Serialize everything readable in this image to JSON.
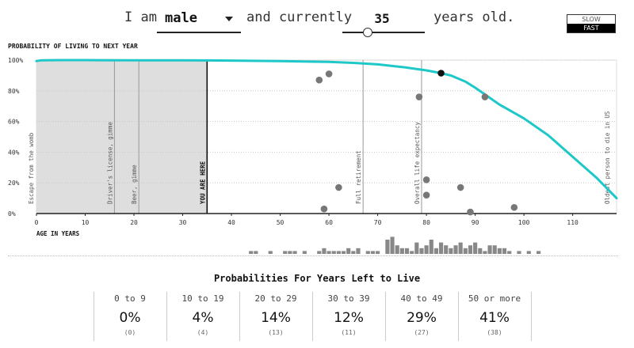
{
  "header": {
    "prefix": "I am",
    "sex_value": "male",
    "middle": "and currently",
    "age_value": "35",
    "suffix": "years old.",
    "speed_options": [
      "SLOW",
      "FAST"
    ],
    "speed_selected": "FAST",
    "age_slider_fraction": 0.3
  },
  "chart_data": {
    "type": "line",
    "title": "PROBABILITY OF LIVING TO NEXT YEAR",
    "xlabel": "AGE IN YEARS",
    "ylabel": "",
    "xlim": [
      0,
      119
    ],
    "ylim": [
      0,
      100
    ],
    "x_ticks": [
      "0",
      "10",
      "20",
      "30",
      "40",
      "50",
      "60",
      "70",
      "80",
      "90",
      "100",
      "110"
    ],
    "y_ticks": [
      "0%",
      "20%",
      "40%",
      "60%",
      "80%",
      "100%"
    ],
    "grid": "horizontal dotted",
    "line_color": "#1ec8c8",
    "series": [
      {
        "x": [
          0,
          1,
          5,
          10,
          20,
          30,
          35,
          40,
          50,
          60,
          65,
          70,
          75,
          80,
          83,
          85,
          88,
          90,
          95,
          100,
          105,
          110,
          115,
          119
        ],
        "y": [
          99.4,
          99.9,
          99.98,
          99.98,
          99.9,
          99.85,
          99.8,
          99.7,
          99.4,
          98.8,
          98.2,
          97.2,
          95.5,
          93.3,
          91.5,
          90,
          86,
          82,
          71,
          62,
          51,
          37,
          23,
          10
        ]
      }
    ],
    "shaded_region": {
      "from": 0,
      "to": 35
    },
    "current_marker": {
      "x": 83,
      "y": 91.5
    },
    "markers": [
      {
        "x": 0,
        "label": "Escape from the womb"
      },
      {
        "x": 16,
        "label": "Driver's license, gimme"
      },
      {
        "x": 21,
        "label": "Beer, gimme"
      },
      {
        "x": 35,
        "label": "YOU ARE HERE"
      },
      {
        "x": 67,
        "label": "Full retirement"
      },
      {
        "x": 79,
        "label": "Overall life expectancy"
      },
      {
        "x": 119,
        "label": "Oldest person to die in US"
      }
    ],
    "death_points": [
      {
        "x": 58,
        "y": 87
      },
      {
        "x": 60,
        "y": 91
      },
      {
        "x": 59,
        "y": 3
      },
      {
        "x": 62,
        "y": 17
      },
      {
        "x": 78.5,
        "y": 76
      },
      {
        "x": 80,
        "y": 22
      },
      {
        "x": 80,
        "y": 12
      },
      {
        "x": 87,
        "y": 17
      },
      {
        "x": 89,
        "y": 1
      },
      {
        "x": 92,
        "y": 76
      },
      {
        "x": 98,
        "y": 4
      }
    ],
    "histogram": {
      "bins": [
        44,
        45,
        48,
        51,
        52,
        53,
        55,
        58,
        59,
        60,
        61,
        62,
        63,
        64,
        65,
        66,
        68,
        69,
        70,
        72,
        73,
        74,
        75,
        76,
        77,
        78,
        79,
        80,
        81,
        82,
        83,
        84,
        85,
        86,
        87,
        88,
        89,
        90,
        91,
        92,
        93,
        94,
        95,
        96,
        97,
        99,
        101,
        103
      ],
      "counts": [
        1,
        1,
        1,
        1,
        1,
        1,
        1,
        1,
        2,
        1,
        1,
        1,
        1,
        2,
        1,
        2,
        1,
        1,
        1,
        5,
        6,
        3,
        2,
        2,
        1,
        4,
        2,
        3,
        5,
        2,
        4,
        3,
        2,
        3,
        4,
        2,
        3,
        4,
        2,
        1,
        3,
        3,
        2,
        2,
        1,
        1,
        1,
        1
      ]
    }
  },
  "probabilities": {
    "title": "Probabilities For Years Left to Live",
    "columns": [
      {
        "range": "0 to 9",
        "percent": "0%",
        "count": "(0)"
      },
      {
        "range": "10 to 19",
        "percent": "4%",
        "count": "(4)"
      },
      {
        "range": "20 to 29",
        "percent": "14%",
        "count": "(13)"
      },
      {
        "range": "30 to 39",
        "percent": "12%",
        "count": "(11)"
      },
      {
        "range": "40 to 49",
        "percent": "29%",
        "count": "(27)"
      },
      {
        "range": "50 or more",
        "percent": "41%",
        "count": "(38)"
      }
    ]
  }
}
